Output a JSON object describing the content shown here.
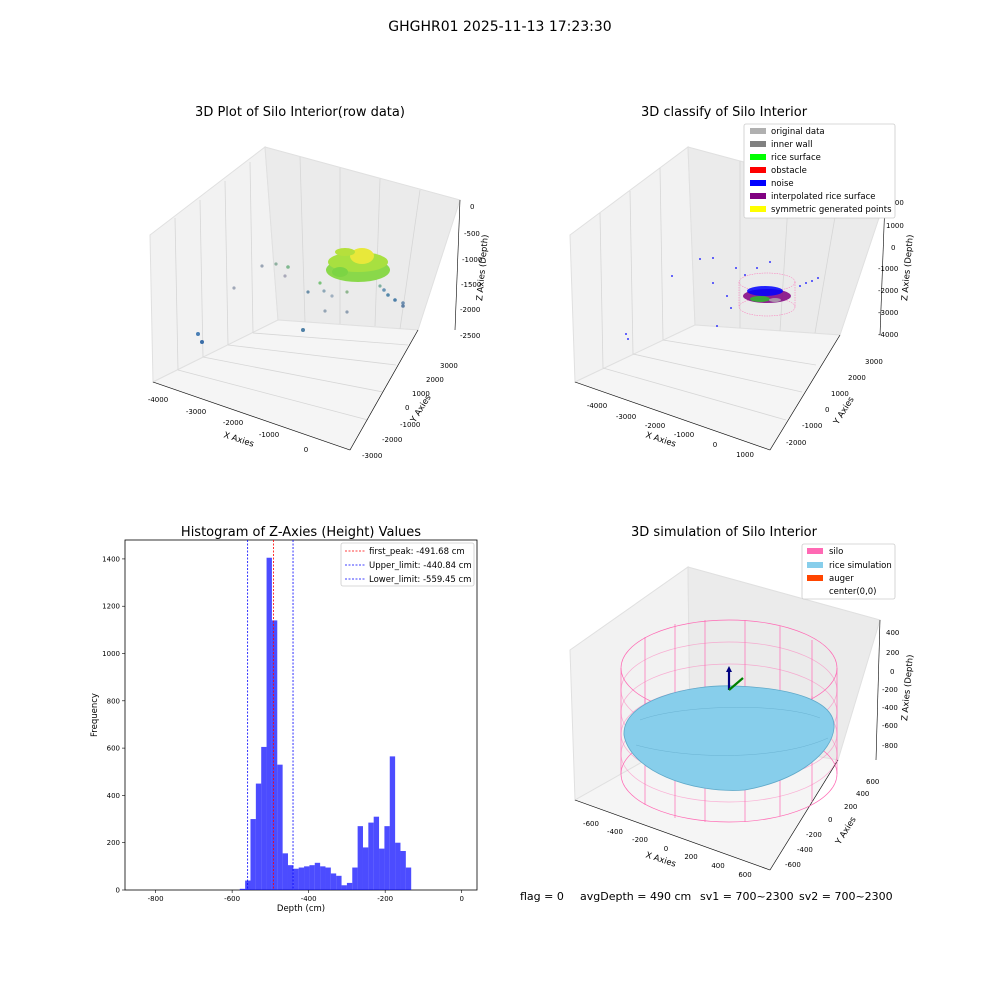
{
  "figure_title": "GHGHR01 2025-11-13 17:23:30",
  "footer": {
    "flag": "flag = 0",
    "avg_depth": "avgDepth = 490 cm",
    "sv1": "sv1 = 700~2300",
    "sv2": "sv2 = 700~2300"
  },
  "panels": {
    "raw": {
      "title": "3D Plot of Silo Interior(row data)",
      "xlabel": "X Axies",
      "ylabel": "Y Axies",
      "zlabel": "Z Axies (Depth)",
      "xticks": [
        "-4000",
        "-3000",
        "-2000",
        "-1000",
        "0"
      ],
      "yticks": [
        "-3000",
        "-2000",
        "-1000",
        "0",
        "1000",
        "2000",
        "3000"
      ],
      "zticks": [
        "0",
        "-500",
        "-1000",
        "-1500",
        "-2000",
        "-2500"
      ]
    },
    "classify": {
      "title": "3D classify of Silo Interior",
      "xlabel": "X Axies",
      "ylabel": "Y Axies",
      "zlabel": "Z Axies (Depth)",
      "xticks": [
        "-4000",
        "-3000",
        "-2000",
        "-1000",
        "0",
        "1000"
      ],
      "yticks": [
        "-2000",
        "-1000",
        "0",
        "1000",
        "2000",
        "3000"
      ],
      "zticks": [
        "2000",
        "1000",
        "0",
        "-1000",
        "-2000",
        "-3000",
        "-4000"
      ],
      "legend": [
        {
          "label": "original data",
          "color": "#b0b0b0"
        },
        {
          "label": "inner wall",
          "color": "#808080"
        },
        {
          "label": "rice surface",
          "color": "#00ff00"
        },
        {
          "label": "obstacle",
          "color": "#ff0000"
        },
        {
          "label": "noise",
          "color": "#0000ff"
        },
        {
          "label": "interpolated rice surface",
          "color": "#800080"
        },
        {
          "label": "symmetric generated points",
          "color": "#ffff00"
        }
      ]
    },
    "histogram": {
      "title": "Histogram of Z-Axies (Height) Values",
      "xlabel": "Depth (cm)",
      "ylabel": "Frequency",
      "xticks": [
        "-800",
        "-600",
        "-400",
        "-200",
        "0"
      ],
      "yticks": [
        "0",
        "200",
        "400",
        "600",
        "800",
        "1000",
        "1200",
        "1400"
      ],
      "legend": [
        {
          "label": "first_peak: -491.68 cm",
          "color": "#ff0000"
        },
        {
          "label": "Upper_limit: -440.84 cm",
          "color": "#0000ff"
        },
        {
          "label": "Lower_limit: -559.45 cm",
          "color": "#0000ff"
        }
      ]
    },
    "simulation": {
      "title": "3D simulation of Silo Interior",
      "xlabel": "X Axies",
      "ylabel": "Y Axies",
      "zlabel": "Z Axies (Depth)",
      "xticks": [
        "-600",
        "-400",
        "-200",
        "0",
        "200",
        "400",
        "600"
      ],
      "yticks": [
        "-600",
        "-400",
        "-200",
        "0",
        "200",
        "400",
        "600"
      ],
      "zticks": [
        "400",
        "200",
        "0",
        "-200",
        "-400",
        "-600",
        "-800"
      ],
      "legend": [
        {
          "label": "silo",
          "color": "#ff69b4"
        },
        {
          "label": "rice simulation",
          "color": "#87ceeb"
        },
        {
          "label": "auger",
          "color": "#ff4500"
        },
        {
          "label": "center(0,0)",
          "color": "#ffffff"
        }
      ]
    }
  },
  "chart_data": [
    {
      "type": "scatter",
      "title": "3D Plot of Silo Interior(row data)",
      "xlabel": "X Axies",
      "ylabel": "Y Axies",
      "zlabel": "Z Axies (Depth)",
      "xlim": [
        -4500,
        500
      ],
      "ylim": [
        -3000,
        3500
      ],
      "zlim": [
        -2700,
        0
      ]
    },
    {
      "type": "scatter",
      "title": "3D classify of Silo Interior",
      "xlabel": "X Axies",
      "ylabel": "Y Axies",
      "zlabel": "Z Axies (Depth)",
      "xlim": [
        -5000,
        1500
      ],
      "ylim": [
        -2500,
        3500
      ],
      "zlim": [
        -4500,
        2000
      ]
    },
    {
      "type": "bar",
      "title": "Histogram of Z-Axies (Height) Values",
      "xlabel": "Depth (cm)",
      "ylabel": "Frequency",
      "xlim": [
        -880,
        40
      ],
      "ylim": [
        0,
        1480
      ],
      "bin_width": 14,
      "bins": [
        {
          "x0": -580,
          "value": 5
        },
        {
          "x0": -566,
          "value": 40
        },
        {
          "x0": -552,
          "value": 300
        },
        {
          "x0": -538,
          "value": 450
        },
        {
          "x0": -524,
          "value": 605
        },
        {
          "x0": -510,
          "value": 1405
        },
        {
          "x0": -496,
          "value": 1140
        },
        {
          "x0": -482,
          "value": 530
        },
        {
          "x0": -468,
          "value": 155
        },
        {
          "x0": -454,
          "value": 105
        },
        {
          "x0": -440,
          "value": 90
        },
        {
          "x0": -426,
          "value": 95
        },
        {
          "x0": -412,
          "value": 100
        },
        {
          "x0": -398,
          "value": 105
        },
        {
          "x0": -384,
          "value": 115
        },
        {
          "x0": -370,
          "value": 100
        },
        {
          "x0": -356,
          "value": 95
        },
        {
          "x0": -342,
          "value": 70
        },
        {
          "x0": -328,
          "value": 60
        },
        {
          "x0": -314,
          "value": 20
        },
        {
          "x0": -300,
          "value": 30
        },
        {
          "x0": -286,
          "value": 95
        },
        {
          "x0": -272,
          "value": 270
        },
        {
          "x0": -258,
          "value": 180
        },
        {
          "x0": -244,
          "value": 285
        },
        {
          "x0": -230,
          "value": 310
        },
        {
          "x0": -216,
          "value": 175
        },
        {
          "x0": -202,
          "value": 270
        },
        {
          "x0": -188,
          "value": 565
        },
        {
          "x0": -174,
          "value": 200
        },
        {
          "x0": -160,
          "value": 165
        },
        {
          "x0": -146,
          "value": 95
        }
      ],
      "vlines": [
        {
          "label": "first_peak: -491.68 cm",
          "x": -491.68,
          "color": "#ff0000"
        },
        {
          "label": "Upper_limit: -440.84 cm",
          "x": -440.84,
          "color": "#0000ff"
        },
        {
          "label": "Lower_limit: -559.45 cm",
          "x": -559.45,
          "color": "#0000ff"
        }
      ],
      "legend_position": "top-right"
    },
    {
      "type": "scatter",
      "title": "3D simulation of Silo Interior",
      "xlabel": "X Axies",
      "ylabel": "Y Axies",
      "zlabel": "Z Axies (Depth)",
      "xlim": [
        -700,
        700
      ],
      "ylim": [
        -700,
        700
      ],
      "zlim": [
        -900,
        500
      ]
    }
  ]
}
